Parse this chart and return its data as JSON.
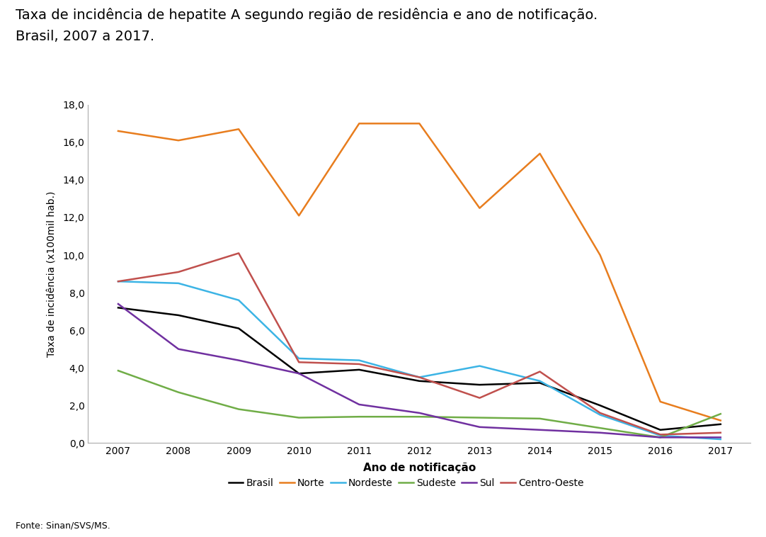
{
  "years": [
    2007,
    2008,
    2009,
    2010,
    2011,
    2012,
    2013,
    2014,
    2015,
    2016,
    2017
  ],
  "series": {
    "Brasil": {
      "values": [
        7.2,
        6.8,
        6.1,
        3.7,
        3.9,
        3.3,
        3.1,
        3.2,
        2.0,
        0.7,
        1.0
      ],
      "color": "#000000",
      "linewidth": 1.8
    },
    "Norte": {
      "values": [
        16.6,
        16.1,
        16.7,
        12.1,
        17.0,
        17.0,
        12.5,
        15.4,
        10.0,
        2.2,
        1.2
      ],
      "color": "#E87D1E",
      "linewidth": 1.8
    },
    "Nordeste": {
      "values": [
        8.6,
        8.5,
        7.6,
        4.5,
        4.4,
        3.5,
        4.1,
        3.3,
        1.5,
        0.4,
        0.2
      ],
      "color": "#3CB4E5",
      "linewidth": 1.8
    },
    "Sudeste": {
      "values": [
        3.85,
        2.7,
        1.8,
        1.35,
        1.4,
        1.4,
        1.35,
        1.3,
        0.8,
        0.3,
        1.55
      ],
      "color": "#70AD47",
      "linewidth": 1.8
    },
    "Sul": {
      "values": [
        7.4,
        5.0,
        4.4,
        3.7,
        2.05,
        1.6,
        0.85,
        0.7,
        0.55,
        0.3,
        0.3
      ],
      "color": "#7030A0",
      "linewidth": 1.8
    },
    "Centro-Oeste": {
      "values": [
        8.6,
        9.1,
        10.1,
        4.3,
        4.2,
        3.5,
        2.4,
        3.8,
        1.6,
        0.45,
        0.55
      ],
      "color": "#C0504D",
      "linewidth": 1.8
    }
  },
  "title_line1": "Taxa de incidência de hepatite A segundo região de residência e ano de notificação.",
  "title_line2": "Brasil, 2007 a 2017.",
  "xlabel": "Ano de notificação",
  "ylabel": "Taxa de incidência (x100mil hab.)",
  "ylim": [
    0.0,
    18.0
  ],
  "yticks": [
    0.0,
    2.0,
    4.0,
    6.0,
    8.0,
    10.0,
    12.0,
    14.0,
    16.0,
    18.0
  ],
  "source": "Fonte: Sinan/SVS/MS.",
  "background_color": "#FFFFFF",
  "legend_order": [
    "Brasil",
    "Norte",
    "Nordeste",
    "Sudeste",
    "Sul",
    "Centro-Oeste"
  ]
}
